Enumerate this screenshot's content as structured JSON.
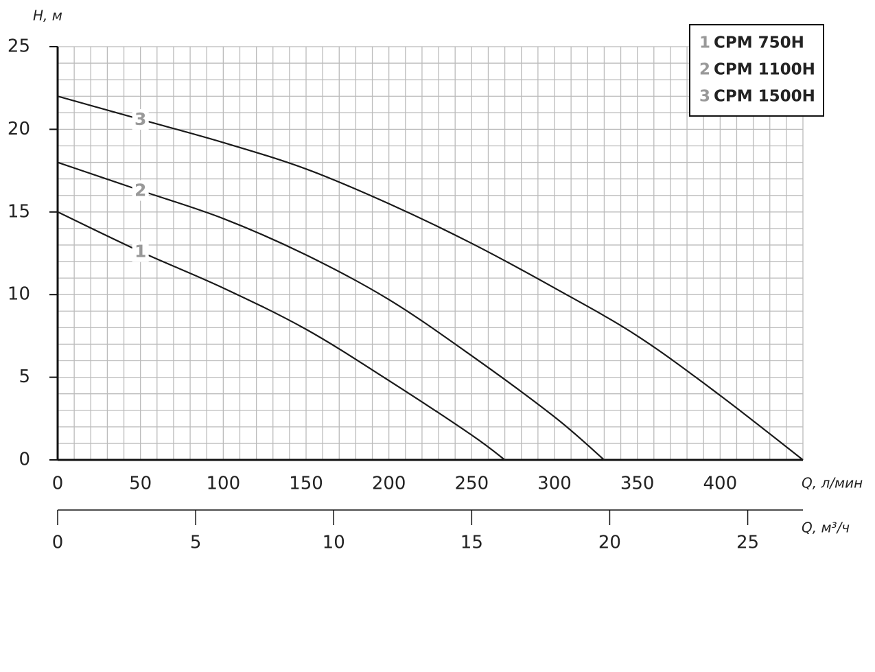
{
  "chart_data": {
    "type": "line",
    "y_label": "H, м",
    "x_label": "Q, л/мин",
    "x2_label": "Q, м³/ч",
    "xlim": [
      0,
      450
    ],
    "xticks": [
      0,
      50,
      100,
      150,
      200,
      250,
      300,
      350,
      400
    ],
    "ylim": [
      0,
      25
    ],
    "yticks": [
      0,
      5,
      10,
      15,
      20,
      25
    ],
    "x2lim": [
      0,
      27
    ],
    "x2ticks": [
      0,
      5,
      10,
      15,
      20,
      25
    ],
    "grid": true,
    "minor_grid": {
      "x": 10,
      "y": 1
    },
    "legend": "top-right",
    "series": [
      {
        "label": "1",
        "name": "CPM 750H",
        "color": "#1a1a1a",
        "x": [
          0,
          50,
          100,
          150,
          200,
          250,
          270
        ],
        "y": [
          15,
          12.6,
          10.4,
          7.9,
          4.8,
          1.5,
          0
        ]
      },
      {
        "label": "2",
        "name": "CPM 1100H",
        "color": "#1a1a1a",
        "x": [
          0,
          50,
          100,
          150,
          200,
          250,
          300,
          330
        ],
        "y": [
          18,
          16.3,
          14.6,
          12.4,
          9.7,
          6.3,
          2.6,
          0
        ]
      },
      {
        "label": "3",
        "name": "CPM 1500H",
        "color": "#1a1a1a",
        "x": [
          0,
          50,
          100,
          150,
          200,
          250,
          300,
          350,
          400,
          450
        ],
        "y": [
          22,
          20.6,
          19.2,
          17.6,
          15.5,
          13.1,
          10.4,
          7.5,
          3.9,
          0
        ]
      }
    ]
  }
}
